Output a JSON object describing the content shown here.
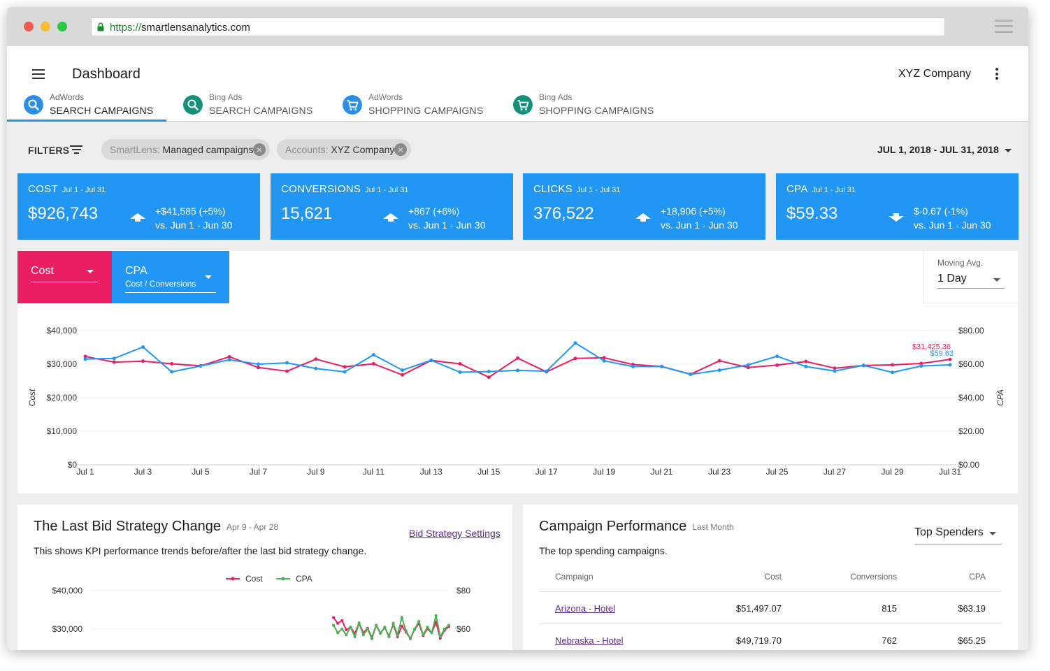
{
  "browser": {
    "url_protocol": "https://",
    "url_host": "smartlensanalytics.com"
  },
  "header": {
    "title": "Dashboard",
    "company": "XYZ Company"
  },
  "tabs": [
    {
      "source": "AdWords",
      "label": "SEARCH CAMPAIGNS",
      "icon": "search-icon",
      "color": "#2d8ee6",
      "active": true
    },
    {
      "source": "Bing Ads",
      "label": "SEARCH CAMPAIGNS",
      "icon": "search-icon",
      "color": "#15907a",
      "active": false
    },
    {
      "source": "AdWords",
      "label": "SHOPPING CAMPAIGNS",
      "icon": "cart-icon",
      "color": "#2d8ee6",
      "active": false
    },
    {
      "source": "Bing Ads",
      "label": "SHOPPING CAMPAIGNS",
      "icon": "cart-icon",
      "color": "#15907a",
      "active": false
    }
  ],
  "filters": {
    "label": "FILTERS",
    "chips": [
      {
        "key": "SmartLens:",
        "value": "Managed campaigns"
      },
      {
        "key": "Accounts:",
        "value": "XYZ Company"
      }
    ],
    "date_range": "JUL 1, 2018 - JUL 31, 2018"
  },
  "kpis": [
    {
      "name": "COST",
      "period": "Jul 1 - Jul 31",
      "value": "$926,743",
      "delta": "+$41,585  (+5%)",
      "compare": "vs. Jun 1 - Jun 30",
      "direction": "up"
    },
    {
      "name": "CONVERSIONS",
      "period": "Jul 1 - Jul 31",
      "value": "15,621",
      "delta": "+867  (+6%)",
      "compare": "vs. Jun 1 - Jun 30",
      "direction": "up"
    },
    {
      "name": "CLICKS",
      "period": "Jul 1 - Jul 31",
      "value": "376,522",
      "delta": "+18,906  (+5%)",
      "compare": "vs. Jun 1 - Jun 30",
      "direction": "up"
    },
    {
      "name": "CPA",
      "period": "Jul 1 - Jul 31",
      "value": "$59.33",
      "delta": "$-0.67  (-1%)",
      "compare": "vs. Jun 1 - Jun 30",
      "direction": "down"
    }
  ],
  "chart_controls": {
    "primary": {
      "label": "Cost",
      "color": "#e91e63"
    },
    "secondary": {
      "label": "CPA",
      "sublabel": "Cost / Conversions",
      "color": "#2196f3"
    },
    "moving_avg": {
      "label": "Moving Avg.",
      "value": "1 Day"
    }
  },
  "chart_data": [
    {
      "type": "line",
      "title": "",
      "x_ticks": [
        "Jul 1",
        "Jul 3",
        "Jul 5",
        "Jul 7",
        "Jul 9",
        "Jul 11",
        "Jul 13",
        "Jul 15",
        "Jul 17",
        "Jul 19",
        "Jul 21",
        "Jul 23",
        "Jul 25",
        "Jul 27",
        "Jul 29",
        "Jul 31"
      ],
      "x": [
        1,
        2,
        3,
        4,
        5,
        6,
        7,
        8,
        9,
        10,
        11,
        12,
        13,
        14,
        15,
        16,
        17,
        18,
        19,
        20,
        21,
        22,
        23,
        24,
        25,
        26,
        27,
        28,
        29,
        30,
        31
      ],
      "ylabel": "Cost",
      "ylabel_right": "CPA",
      "y_ticks_left": [
        "$0",
        "$10,000",
        "$20,000",
        "$30,000",
        "$40,000"
      ],
      "y_ticks_right": [
        "$0.00",
        "$20.00",
        "$40.00",
        "$60.00",
        "$80.00"
      ],
      "ylim_left": [
        0,
        40000
      ],
      "ylim_right": [
        0,
        80
      ],
      "series": [
        {
          "name": "Cost",
          "axis": "left",
          "color": "#e91e63",
          "values": [
            32300,
            30600,
            30900,
            30100,
            29500,
            32200,
            29000,
            27900,
            31500,
            29200,
            30100,
            26800,
            31100,
            30100,
            26100,
            31800,
            27700,
            31700,
            31900,
            29900,
            29300,
            27000,
            31000,
            29000,
            29700,
            30800,
            28800,
            29600,
            29800,
            30200,
            31400
          ],
          "end_label": "$31,425.36"
        },
        {
          "name": "CPA",
          "axis": "right",
          "color": "#2196f3",
          "values": [
            63.0,
            63.4,
            70.2,
            55.4,
            58.9,
            62.6,
            60.0,
            60.8,
            57.4,
            55.4,
            65.6,
            56.4,
            62.3,
            55.2,
            55.6,
            56.3,
            55.8,
            72.6,
            62.0,
            58.6,
            58.6,
            53.9,
            56.4,
            59.6,
            64.7,
            58.6,
            55.9,
            59.3,
            55.1,
            58.9,
            59.6
          ],
          "end_label": "$59.63"
        }
      ],
      "grid": true
    },
    {
      "type": "line",
      "title": "",
      "legend": "top-center",
      "y_ticks_left": [
        "$30,000",
        "$40,000"
      ],
      "y_ticks_right": [
        "$60",
        "$80"
      ],
      "series": [
        {
          "name": "Cost",
          "color": "#e91e63",
          "values": [
            33000,
            31500,
            32200,
            29800,
            30500,
            28800,
            31600,
            29000,
            30200,
            27800,
            31000,
            28900,
            30400,
            28200,
            31200,
            28000,
            30800,
            29200,
            27500,
            29900,
            31500,
            28300,
            30100,
            29000,
            31800,
            27600,
            29700,
            30600
          ]
        },
        {
          "name": "CPA",
          "color": "#4caf50",
          "values": [
            62,
            58,
            60,
            57,
            61,
            56,
            63,
            57,
            60,
            55,
            62,
            58,
            61,
            56,
            63,
            57,
            66,
            59,
            55,
            60,
            64,
            57,
            61,
            58,
            67,
            56,
            60,
            62
          ]
        }
      ]
    }
  ],
  "bid_strategy": {
    "title": "The Last Bid Strategy Change",
    "period": "Apr 9 - Apr 28",
    "link": "Bid Strategy Settings",
    "description": "This shows KPI performance trends before/after the last bid strategy change."
  },
  "campaign_performance": {
    "title": "Campaign Performance",
    "period": "Last Month",
    "sort": "Top Spenders",
    "description": "The top spending campaigns.",
    "columns": [
      "Campaign",
      "Cost",
      "Conversions",
      "CPA"
    ],
    "rows": [
      {
        "campaign": "Arizona - Hotel",
        "cost": "$51,497.07",
        "conversions": "815",
        "cpa": "$63.19"
      },
      {
        "campaign": "Nebraska - Hotel",
        "cost": "$49,719.70",
        "conversions": "762",
        "cpa": "$65.25"
      }
    ]
  }
}
